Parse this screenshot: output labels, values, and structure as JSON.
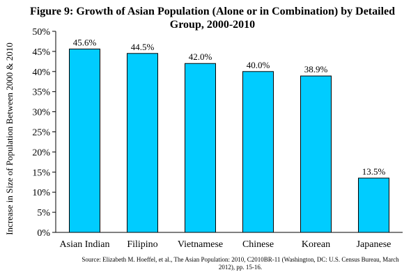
{
  "chart_data": {
    "type": "bar",
    "title": "Figure 9: Growth of Asian Population (Alone or in Combination) by Detailed Group, 2000-2010",
    "xlabel": "",
    "ylabel": "Increase in Size of Population Between 2000 & 2010",
    "categories": [
      "Asian Indian",
      "Filipino",
      "Vietnamese",
      "Chinese",
      "Korean",
      "Japanese"
    ],
    "values": [
      45.6,
      44.5,
      42.0,
      40.0,
      38.9,
      13.5
    ],
    "data_labels": [
      "45.6%",
      "44.5%",
      "42.0%",
      "40.0%",
      "38.9%",
      "13.5%"
    ],
    "ylim": [
      0,
      50
    ],
    "yticks": [
      0,
      5,
      10,
      15,
      20,
      25,
      30,
      35,
      40,
      45,
      50
    ],
    "ytick_labels": [
      "0%",
      "5%",
      "10%",
      "15%",
      "20%",
      "25%",
      "30%",
      "35%",
      "40%",
      "45%",
      "50%"
    ],
    "grid": false,
    "legend": "none",
    "bar_color": "#00ccff",
    "source": "Source: Elizabeth M. Hoeffel, et al., The Asian Population: 2010, C2010BR-11 (Washington, DC: U.S. Census Bureau, March 2012), pp. 15-16."
  }
}
